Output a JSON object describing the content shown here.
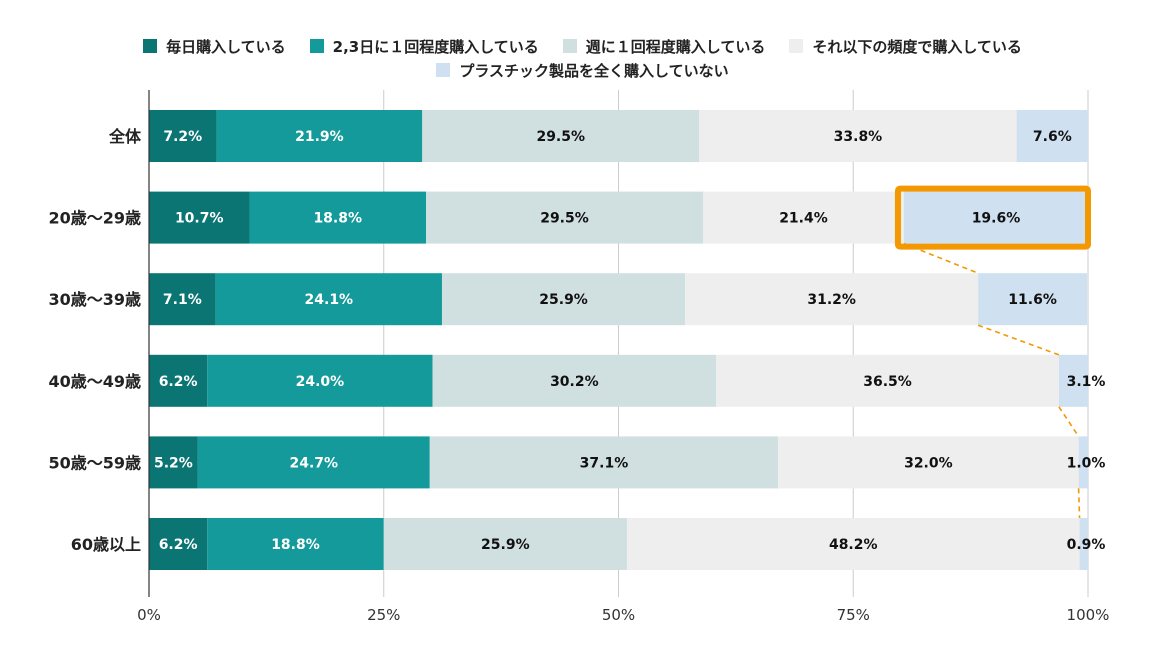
{
  "chart_data": {
    "type": "bar",
    "orientation": "horizontal",
    "stacked": true,
    "categories": [
      "全体",
      "20歳〜29歳",
      "30歳〜39歳",
      "40歳〜49歳",
      "50歳〜59歳",
      "60歳以上"
    ],
    "series": [
      {
        "name": "毎日購入している",
        "color": "#0b7574",
        "label_color": "#ffffff",
        "values": [
          7.2,
          10.7,
          7.1,
          6.2,
          5.2,
          6.2
        ],
        "labels": [
          "7.2%",
          "10.7%",
          "7.1%",
          "6.2%",
          "5.2%",
          "6.2%"
        ]
      },
      {
        "name": "2,3日に１回程度購入している",
        "color": "#149a9a",
        "label_color": "#ffffff",
        "values": [
          21.9,
          18.8,
          24.1,
          24.0,
          24.7,
          18.8
        ],
        "labels": [
          "21.9%",
          "18.8%",
          "24.1%",
          "24.0%",
          "24.7%",
          "18.8%"
        ]
      },
      {
        "name": "週に１回程度購入している",
        "color": "#d0dfe0",
        "label_color": "#111111",
        "values": [
          29.5,
          29.5,
          25.9,
          30.2,
          37.1,
          25.9
        ],
        "labels": [
          "29.5%",
          "29.5%",
          "25.9%",
          "30.2%",
          "37.1%",
          "25.9%"
        ]
      },
      {
        "name": "それ以下の頻度で購入している",
        "color": "#eeeeee",
        "label_color": "#111111",
        "values": [
          33.8,
          21.4,
          31.2,
          36.5,
          32.0,
          48.2
        ],
        "labels": [
          "33.8%",
          "21.4%",
          "31.2%",
          "36.5%",
          "32.0%",
          "48.2%"
        ]
      },
      {
        "name": "プラスチック製品を全く購入していない",
        "color": "#cfe0f1",
        "label_color": "#111111",
        "values": [
          7.6,
          19.6,
          11.6,
          3.1,
          1.0,
          0.9
        ],
        "labels": [
          "7.6%",
          "19.6%",
          "11.6%",
          "3.1%",
          "1.0%",
          "0.9%"
        ]
      }
    ],
    "xlim": [
      0,
      100
    ],
    "x_ticks": [
      "0%",
      "25%",
      "50%",
      "75%",
      "100%"
    ],
    "x_tick_values": [
      0,
      25,
      50,
      75,
      100
    ],
    "grid": true,
    "legend_position": "top",
    "highlight": {
      "category_index": 1,
      "series_index": 4,
      "color": "#f39800"
    },
    "connector_series_index": 4,
    "connector_color": "#f39800"
  }
}
